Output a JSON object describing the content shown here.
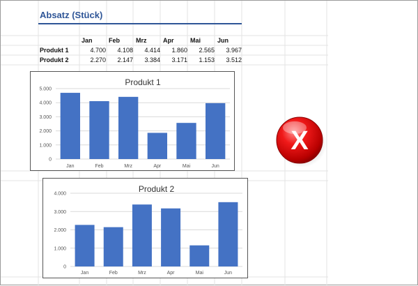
{
  "sheet": {
    "title": "Absatz (Stück)",
    "table": {
      "headers": [
        "",
        "Jan",
        "Feb",
        "Mrz",
        "Apr",
        "Mai",
        "Jun"
      ],
      "rows": [
        {
          "label": "Produkt 1",
          "values": [
            "4.700",
            "4.108",
            "4.414",
            "1.860",
            "2.565",
            "3.967"
          ]
        },
        {
          "label": "Produkt 2",
          "values": [
            "2.270",
            "2.147",
            "3.384",
            "3.171",
            "1.153",
            "3.512"
          ]
        }
      ]
    }
  },
  "chart_data": [
    {
      "type": "bar",
      "title": "Produkt 1",
      "categories": [
        "Jan",
        "Feb",
        "Mrz",
        "Apr",
        "Mai",
        "Jun"
      ],
      "values": [
        4700,
        4108,
        4414,
        1860,
        2565,
        3967
      ],
      "ylim": [
        0,
        5000
      ],
      "ytick_labels": [
        "0",
        "1.000",
        "2.000",
        "3.000",
        "4.000",
        "5.000"
      ],
      "bar_color": "#4472c4",
      "grid": true,
      "legend": "none"
    },
    {
      "type": "bar",
      "title": "Produkt 2",
      "categories": [
        "Jan",
        "Feb",
        "Mrz",
        "Apr",
        "Mai",
        "Jun"
      ],
      "values": [
        2270,
        2147,
        3384,
        3171,
        1153,
        3512
      ],
      "ylim": [
        0,
        4000
      ],
      "ytick_labels": [
        "0",
        "1.000",
        "2.000",
        "3.000",
        "4.000"
      ],
      "bar_color": "#4472c4",
      "grid": true,
      "legend": "none"
    }
  ],
  "error_icon": {
    "glyph": "X",
    "color": "#e00000"
  }
}
